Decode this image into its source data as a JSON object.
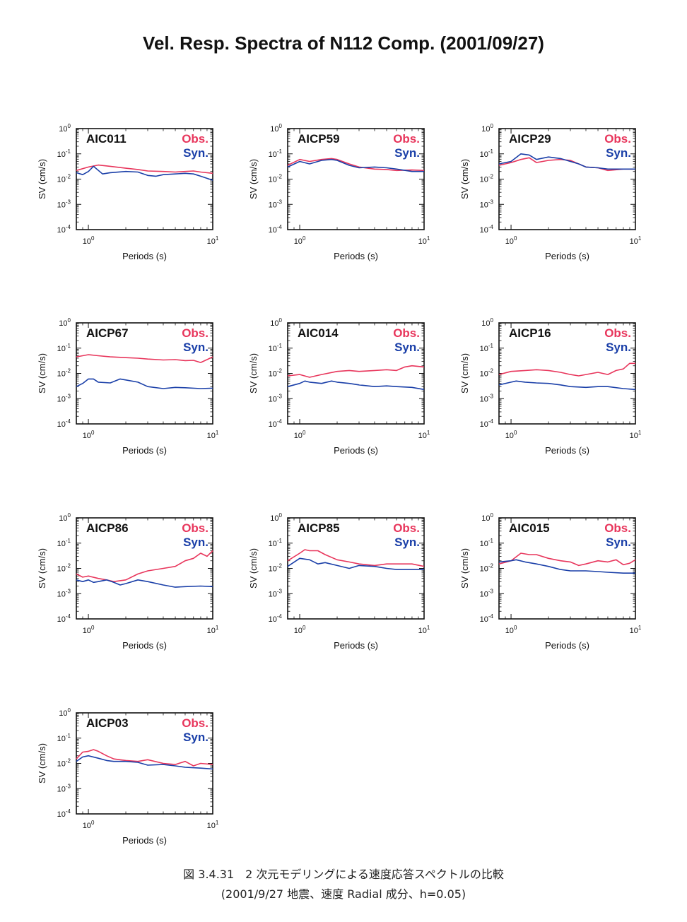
{
  "title": "Vel. Resp. Spectra of N112 Comp. (2001/09/27)",
  "caption": {
    "line1": "図 3.4.31　2 次元モデリングによる速度応答スペクトルの比較",
    "line2": "(2001/9/27 地震、速度 Radial 成分、h=0.05)"
  },
  "colors": {
    "obs": "#e8365c",
    "syn": "#1a3fa8",
    "frame": "#111111"
  },
  "chart_data": [
    {
      "type": "line",
      "station": "AIC011",
      "xlabel": "Periods (s)",
      "ylabel": "SV (cm/s)",
      "xscale": "log",
      "yscale": "log",
      "xlim": [
        0.8,
        10
      ],
      "ylim": [
        0.0001,
        1
      ],
      "x_ticks": [
        "10^0",
        "10^1"
      ],
      "y_ticks": [
        "10^0",
        "10^-1",
        "10^-2",
        "10^-3",
        "10^-4"
      ],
      "legend": [
        "Obs.",
        "Syn."
      ],
      "legend_position": "top-right",
      "series": [
        {
          "name": "Obs.",
          "x": [
            0.8,
            1.0,
            1.2,
            1.5,
            2.0,
            2.5,
            3.0,
            4.0,
            5.0,
            6.0,
            7.0,
            8.0,
            10.0
          ],
          "y": [
            0.022,
            0.03,
            0.036,
            0.032,
            0.027,
            0.024,
            0.021,
            0.02,
            0.019,
            0.02,
            0.021,
            0.019,
            0.017
          ]
        },
        {
          "name": "Syn.",
          "x": [
            0.8,
            0.9,
            1.0,
            1.1,
            1.3,
            1.5,
            2.0,
            2.5,
            3.0,
            3.5,
            4.0,
            5.0,
            6.0,
            7.0,
            8.0,
            10.0
          ],
          "y": [
            0.018,
            0.015,
            0.02,
            0.032,
            0.016,
            0.018,
            0.02,
            0.019,
            0.014,
            0.013,
            0.015,
            0.016,
            0.017,
            0.016,
            0.013,
            0.009
          ]
        }
      ]
    },
    {
      "type": "line",
      "station": "AICP59",
      "xlabel": "Periods (s)",
      "ylabel": "SV (cm/s)",
      "xscale": "log",
      "yscale": "log",
      "xlim": [
        0.8,
        10
      ],
      "ylim": [
        0.0001,
        1
      ],
      "x_ticks": [
        "10^0",
        "10^1"
      ],
      "y_ticks": [
        "10^0",
        "10^-1",
        "10^-2",
        "10^-3",
        "10^-4"
      ],
      "legend": [
        "Obs.",
        "Syn."
      ],
      "legend_position": "top-right",
      "series": [
        {
          "name": "Obs.",
          "x": [
            0.8,
            1.0,
            1.2,
            1.5,
            1.8,
            2.0,
            2.5,
            3.0,
            4.0,
            5.0,
            6.0,
            8.0,
            10.0
          ],
          "y": [
            0.035,
            0.06,
            0.05,
            0.06,
            0.065,
            0.06,
            0.04,
            0.03,
            0.025,
            0.024,
            0.022,
            0.023,
            0.022
          ]
        },
        {
          "name": "Syn.",
          "x": [
            0.8,
            1.0,
            1.2,
            1.5,
            1.8,
            2.0,
            2.5,
            3.0,
            4.0,
            5.0,
            6.0,
            8.0,
            10.0
          ],
          "y": [
            0.03,
            0.05,
            0.04,
            0.055,
            0.06,
            0.055,
            0.035,
            0.028,
            0.03,
            0.028,
            0.025,
            0.02,
            0.02
          ]
        }
      ]
    },
    {
      "type": "line",
      "station": "AICP29",
      "xlabel": "Periods (s)",
      "ylabel": "SV (cm/s)",
      "xscale": "log",
      "yscale": "log",
      "xlim": [
        0.8,
        10
      ],
      "ylim": [
        0.0001,
        1
      ],
      "x_ticks": [
        "10^0",
        "10^1"
      ],
      "y_ticks": [
        "10^0",
        "10^-1",
        "10^-2",
        "10^-3",
        "10^-4"
      ],
      "legend": [
        "Obs.",
        "Syn."
      ],
      "legend_position": "top-right",
      "series": [
        {
          "name": "Obs.",
          "x": [
            0.8,
            1.0,
            1.2,
            1.4,
            1.6,
            2.0,
            2.5,
            3.0,
            3.5,
            4.0,
            5.0,
            6.0,
            8.0,
            10.0
          ],
          "y": [
            0.035,
            0.045,
            0.06,
            0.07,
            0.045,
            0.055,
            0.06,
            0.055,
            0.04,
            0.03,
            0.028,
            0.022,
            0.025,
            0.025
          ]
        },
        {
          "name": "Syn.",
          "x": [
            0.8,
            1.0,
            1.2,
            1.4,
            1.6,
            2.0,
            2.5,
            3.0,
            3.5,
            4.0,
            5.0,
            6.0,
            8.0,
            10.0
          ],
          "y": [
            0.04,
            0.05,
            0.1,
            0.09,
            0.06,
            0.075,
            0.065,
            0.05,
            0.04,
            0.03,
            0.028,
            0.025,
            0.025,
            0.025
          ]
        }
      ]
    },
    {
      "type": "line",
      "station": "AICP67",
      "xlabel": "Periods (s)",
      "ylabel": "SV (cm/s)",
      "xscale": "log",
      "yscale": "log",
      "xlim": [
        0.8,
        10
      ],
      "ylim": [
        0.0001,
        1
      ],
      "x_ticks": [
        "10^0",
        "10^1"
      ],
      "y_ticks": [
        "10^0",
        "10^-1",
        "10^-2",
        "10^-3",
        "10^-4"
      ],
      "legend": [
        "Obs.",
        "Syn."
      ],
      "legend_position": "top-right",
      "series": [
        {
          "name": "Obs.",
          "x": [
            0.8,
            1.0,
            1.2,
            1.5,
            2.0,
            2.5,
            3.0,
            4.0,
            5.0,
            6.0,
            7.0,
            8.0,
            9.0,
            10.0
          ],
          "y": [
            0.045,
            0.055,
            0.05,
            0.045,
            0.042,
            0.04,
            0.037,
            0.034,
            0.035,
            0.032,
            0.033,
            0.027,
            0.035,
            0.045
          ]
        },
        {
          "name": "Syn.",
          "x": [
            0.8,
            0.9,
            1.0,
            1.1,
            1.2,
            1.5,
            1.8,
            2.0,
            2.5,
            3.0,
            4.0,
            5.0,
            6.0,
            8.0,
            10.0
          ],
          "y": [
            0.003,
            0.004,
            0.006,
            0.006,
            0.0045,
            0.0042,
            0.006,
            0.0055,
            0.0045,
            0.003,
            0.0025,
            0.0028,
            0.0027,
            0.0025,
            0.0026
          ]
        }
      ]
    },
    {
      "type": "line",
      "station": "AIC014",
      "xlabel": "Periods (s)",
      "ylabel": "SV (cm/s)",
      "xscale": "log",
      "yscale": "log",
      "xlim": [
        0.8,
        10
      ],
      "ylim": [
        0.0001,
        1
      ],
      "x_ticks": [
        "10^0",
        "10^1"
      ],
      "y_ticks": [
        "10^0",
        "10^-1",
        "10^-2",
        "10^-3",
        "10^-4"
      ],
      "legend": [
        "Obs.",
        "Syn."
      ],
      "legend_position": "top-right",
      "series": [
        {
          "name": "Obs.",
          "x": [
            0.8,
            1.0,
            1.2,
            1.5,
            2.0,
            2.5,
            3.0,
            4.0,
            5.0,
            6.0,
            7.0,
            8.0,
            10.0
          ],
          "y": [
            0.008,
            0.009,
            0.007,
            0.009,
            0.012,
            0.013,
            0.012,
            0.013,
            0.014,
            0.013,
            0.018,
            0.02,
            0.018
          ]
        },
        {
          "name": "Syn.",
          "x": [
            0.8,
            1.0,
            1.1,
            1.2,
            1.5,
            1.8,
            2.0,
            2.5,
            3.0,
            4.0,
            5.0,
            6.0,
            8.0,
            10.0
          ],
          "y": [
            0.003,
            0.004,
            0.005,
            0.0045,
            0.004,
            0.005,
            0.0045,
            0.004,
            0.0035,
            0.003,
            0.0032,
            0.003,
            0.0028,
            0.0023
          ]
        }
      ]
    },
    {
      "type": "line",
      "station": "AICP16",
      "xlabel": "Periods (s)",
      "ylabel": "SV (cm/s)",
      "xscale": "log",
      "yscale": "log",
      "xlim": [
        0.8,
        10
      ],
      "ylim": [
        0.0001,
        1
      ],
      "x_ticks": [
        "10^0",
        "10^1"
      ],
      "y_ticks": [
        "10^0",
        "10^-1",
        "10^-2",
        "10^-3",
        "10^-4"
      ],
      "legend": [
        "Obs.",
        "Syn."
      ],
      "legend_position": "top-right",
      "series": [
        {
          "name": "Obs.",
          "x": [
            0.8,
            1.0,
            1.3,
            1.6,
            2.0,
            2.5,
            3.0,
            3.5,
            4.0,
            5.0,
            6.0,
            7.0,
            8.0,
            9.0,
            10.0
          ],
          "y": [
            0.009,
            0.012,
            0.013,
            0.014,
            0.013,
            0.011,
            0.009,
            0.008,
            0.009,
            0.011,
            0.009,
            0.013,
            0.015,
            0.025,
            0.025
          ]
        },
        {
          "name": "Syn.",
          "x": [
            0.8,
            1.0,
            1.1,
            1.3,
            1.6,
            2.0,
            2.5,
            3.0,
            4.0,
            5.0,
            6.0,
            8.0,
            10.0
          ],
          "y": [
            0.0035,
            0.0045,
            0.005,
            0.0045,
            0.0042,
            0.004,
            0.0035,
            0.003,
            0.0028,
            0.003,
            0.003,
            0.0025,
            0.0023
          ]
        }
      ]
    },
    {
      "type": "line",
      "station": "AICP86",
      "xlabel": "Periods (s)",
      "ylabel": "SV (cm/s)",
      "xscale": "log",
      "yscale": "log",
      "xlim": [
        0.8,
        10
      ],
      "ylim": [
        0.0001,
        1
      ],
      "x_ticks": [
        "10^0",
        "10^1"
      ],
      "y_ticks": [
        "10^0",
        "10^-1",
        "10^-2",
        "10^-3",
        "10^-4"
      ],
      "legend": [
        "Obs.",
        "Syn."
      ],
      "legend_position": "top-right",
      "series": [
        {
          "name": "Obs.",
          "x": [
            0.8,
            0.9,
            1.0,
            1.2,
            1.4,
            1.6,
            2.0,
            2.5,
            3.0,
            4.0,
            5.0,
            6.0,
            7.0,
            8.0,
            9.0,
            10.0
          ],
          "y": [
            0.006,
            0.0045,
            0.005,
            0.004,
            0.0035,
            0.003,
            0.0035,
            0.006,
            0.008,
            0.01,
            0.012,
            0.02,
            0.025,
            0.04,
            0.03,
            0.05
          ]
        },
        {
          "name": "Syn.",
          "x": [
            0.8,
            0.9,
            1.0,
            1.1,
            1.2,
            1.4,
            1.6,
            1.8,
            2.0,
            2.5,
            3.0,
            4.0,
            5.0,
            6.0,
            8.0,
            10.0
          ],
          "y": [
            0.0035,
            0.003,
            0.0035,
            0.0028,
            0.003,
            0.0035,
            0.0028,
            0.0022,
            0.0025,
            0.0035,
            0.003,
            0.0022,
            0.0018,
            0.0019,
            0.002,
            0.0019
          ]
        }
      ]
    },
    {
      "type": "line",
      "station": "AICP85",
      "xlabel": "Periods (s)",
      "ylabel": "SV (cm/s)",
      "xscale": "log",
      "yscale": "log",
      "xlim": [
        0.8,
        10
      ],
      "ylim": [
        0.0001,
        1
      ],
      "x_ticks": [
        "10^0",
        "10^1"
      ],
      "y_ticks": [
        "10^0",
        "10^-1",
        "10^-2",
        "10^-3",
        "10^-4"
      ],
      "legend": [
        "Obs.",
        "Syn."
      ],
      "legend_position": "top-right",
      "series": [
        {
          "name": "Obs.",
          "x": [
            0.8,
            1.0,
            1.1,
            1.2,
            1.4,
            1.6,
            2.0,
            2.5,
            3.0,
            4.0,
            5.0,
            6.0,
            8.0,
            10.0
          ],
          "y": [
            0.02,
            0.04,
            0.055,
            0.05,
            0.05,
            0.035,
            0.022,
            0.018,
            0.015,
            0.013,
            0.015,
            0.015,
            0.015,
            0.012
          ]
        },
        {
          "name": "Syn.",
          "x": [
            0.8,
            1.0,
            1.2,
            1.4,
            1.6,
            2.0,
            2.5,
            3.0,
            4.0,
            5.0,
            6.0,
            8.0,
            10.0
          ],
          "y": [
            0.012,
            0.025,
            0.022,
            0.015,
            0.017,
            0.013,
            0.01,
            0.013,
            0.012,
            0.01,
            0.009,
            0.009,
            0.009
          ]
        }
      ]
    },
    {
      "type": "line",
      "station": "AIC015",
      "xlabel": "Periods (s)",
      "ylabel": "SV (cm/s)",
      "xscale": "log",
      "yscale": "log",
      "xlim": [
        0.8,
        10
      ],
      "ylim": [
        0.0001,
        1
      ],
      "x_ticks": [
        "10^0",
        "10^1"
      ],
      "y_ticks": [
        "10^0",
        "10^-1",
        "10^-2",
        "10^-3",
        "10^-4"
      ],
      "legend": [
        "Obs.",
        "Syn."
      ],
      "legend_position": "top-right",
      "series": [
        {
          "name": "Obs.",
          "x": [
            0.8,
            1.0,
            1.2,
            1.4,
            1.6,
            2.0,
            2.5,
            3.0,
            3.5,
            4.0,
            5.0,
            6.0,
            7.0,
            8.0,
            9.0,
            10.0
          ],
          "y": [
            0.015,
            0.02,
            0.04,
            0.035,
            0.035,
            0.025,
            0.02,
            0.018,
            0.013,
            0.015,
            0.02,
            0.018,
            0.022,
            0.014,
            0.016,
            0.022
          ]
        },
        {
          "name": "Syn.",
          "x": [
            0.8,
            1.0,
            1.1,
            1.3,
            1.6,
            2.0,
            2.5,
            3.0,
            4.0,
            5.0,
            6.0,
            8.0,
            10.0
          ],
          "y": [
            0.018,
            0.02,
            0.022,
            0.018,
            0.015,
            0.012,
            0.009,
            0.008,
            0.008,
            0.0075,
            0.007,
            0.0065,
            0.0065
          ]
        }
      ]
    },
    {
      "type": "line",
      "station": "AICP03",
      "xlabel": "Periods (s)",
      "ylabel": "SV (cm/s)",
      "xscale": "log",
      "yscale": "log",
      "xlim": [
        0.8,
        10
      ],
      "ylim": [
        0.0001,
        1
      ],
      "x_ticks": [
        "10^0",
        "10^1"
      ],
      "y_ticks": [
        "10^0",
        "10^-1",
        "10^-2",
        "10^-3",
        "10^-4"
      ],
      "legend": [
        "Obs.",
        "Syn."
      ],
      "legend_position": "top-right",
      "series": [
        {
          "name": "Obs.",
          "x": [
            0.8,
            0.9,
            1.0,
            1.1,
            1.2,
            1.4,
            1.6,
            2.0,
            2.5,
            3.0,
            4.0,
            5.0,
            6.0,
            7.0,
            8.0,
            10.0
          ],
          "y": [
            0.015,
            0.028,
            0.03,
            0.035,
            0.03,
            0.02,
            0.015,
            0.013,
            0.012,
            0.014,
            0.01,
            0.009,
            0.012,
            0.008,
            0.01,
            0.009
          ]
        },
        {
          "name": "Syn.",
          "x": [
            0.8,
            0.9,
            1.0,
            1.2,
            1.4,
            1.6,
            2.0,
            2.5,
            3.0,
            4.0,
            5.0,
            6.0,
            8.0,
            10.0
          ],
          "y": [
            0.012,
            0.018,
            0.02,
            0.016,
            0.013,
            0.012,
            0.012,
            0.011,
            0.0085,
            0.009,
            0.008,
            0.007,
            0.0065,
            0.006
          ]
        }
      ]
    }
  ]
}
